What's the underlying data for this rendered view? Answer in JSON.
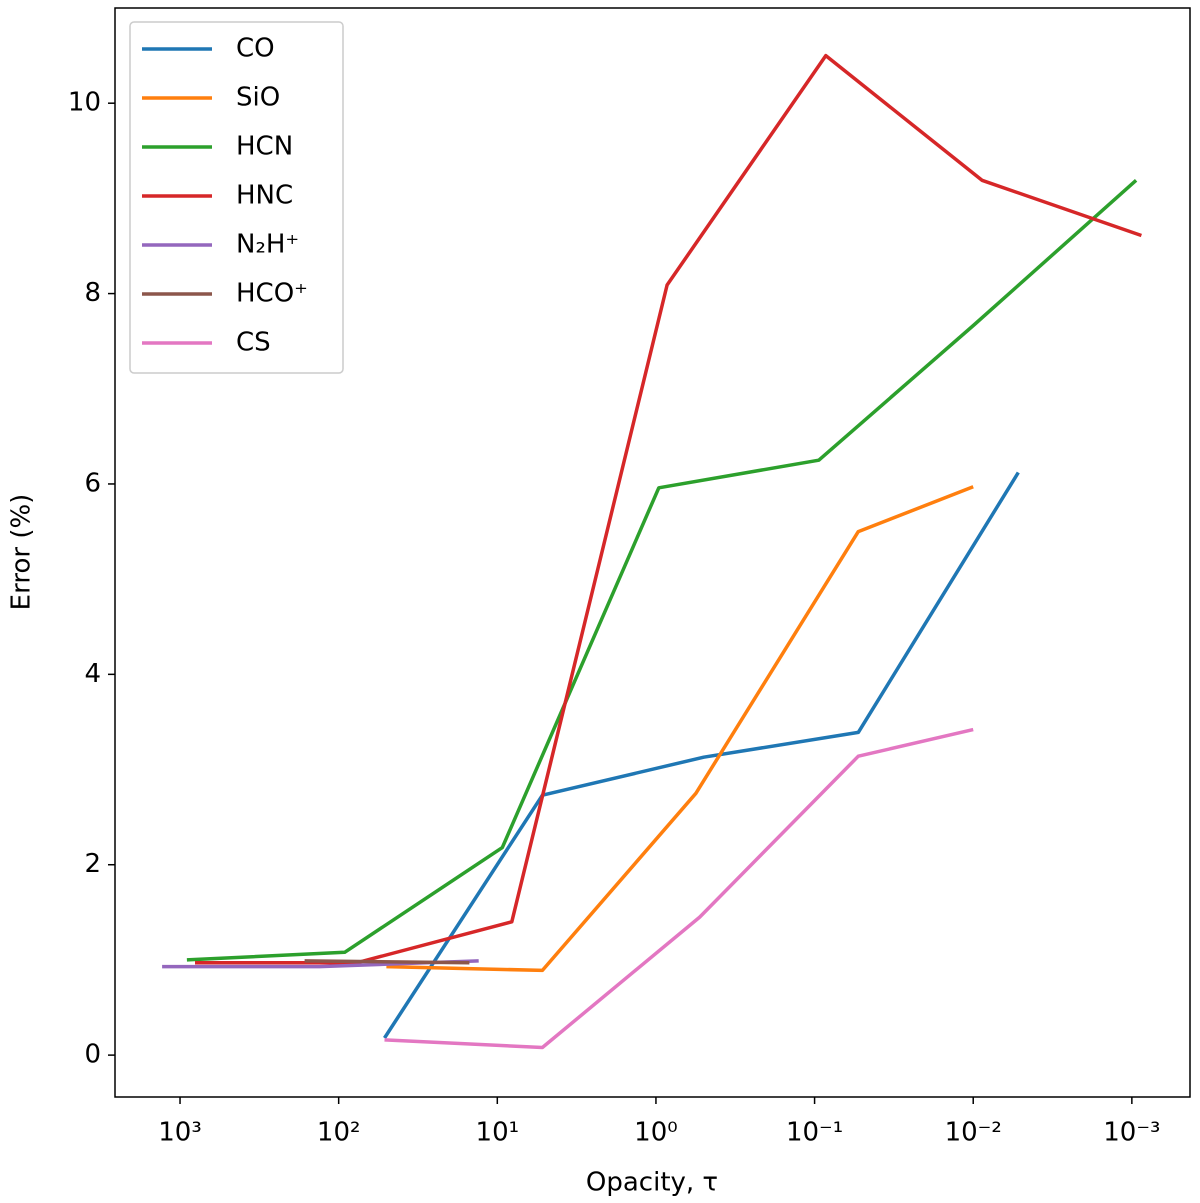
{
  "chart_data": {
    "type": "line",
    "xlabel": "Opacity, τ",
    "ylabel": "Error (%)",
    "xscale": "log",
    "legend": "upper left",
    "xlim": [
      2570,
      0.00043
    ],
    "ylim": [
      -0.44,
      11.0
    ],
    "xticks": [
      {
        "value": 1000,
        "label": "10³"
      },
      {
        "value": 100,
        "label": "10²"
      },
      {
        "value": 10,
        "label": "10¹"
      },
      {
        "value": 1,
        "label": "10⁰"
      },
      {
        "value": 0.1,
        "label": "10⁻¹"
      },
      {
        "value": 0.01,
        "label": "10⁻²"
      },
      {
        "value": 0.001,
        "label": "10⁻³"
      }
    ],
    "yticks": [
      0,
      2,
      4,
      6,
      8,
      10
    ],
    "series": [
      {
        "name": "CO",
        "color": "#1f77b4",
        "x": [
          51.4,
          5.2,
          0.5,
          0.053,
          0.0052
        ],
        "values": [
          0.18,
          2.73,
          3.13,
          3.39,
          6.12
        ]
      },
      {
        "name": "SiO",
        "color": "#ff7f0e",
        "x": [
          50,
          5.2,
          0.56,
          0.053,
          0.01
        ],
        "values": [
          0.93,
          0.89,
          2.75,
          5.5,
          5.97
        ]
      },
      {
        "name": "HCN",
        "color": "#2ca02c",
        "x": [
          905,
          91.6,
          9.3,
          0.96,
          0.094,
          0.0099,
          0.00094
        ],
        "values": [
          1.0,
          1.08,
          2.18,
          5.96,
          6.25,
          7.67,
          9.19
        ]
      },
      {
        "name": "HNC",
        "color": "#d62728",
        "x": [
          805,
          77,
          8.1,
          0.85,
          0.085,
          0.0088,
          0.00087
        ],
        "values": [
          0.97,
          0.97,
          1.4,
          8.09,
          10.5,
          9.19,
          8.61
        ]
      },
      {
        "name": "N₂H⁺",
        "color": "#9467bd",
        "x": [
          1298,
          132,
          13.1
        ],
        "values": [
          0.93,
          0.93,
          0.99
        ]
      },
      {
        "name": "HCO⁺",
        "color": "#8c564b",
        "x": [
          164,
          15
        ],
        "values": [
          0.99,
          0.97
        ]
      },
      {
        "name": "CS",
        "color": "#e377c2",
        "x": [
          51.4,
          5.2,
          0.53,
          0.053,
          0.01
        ],
        "values": [
          0.16,
          0.08,
          1.45,
          3.14,
          3.42
        ]
      }
    ]
  }
}
